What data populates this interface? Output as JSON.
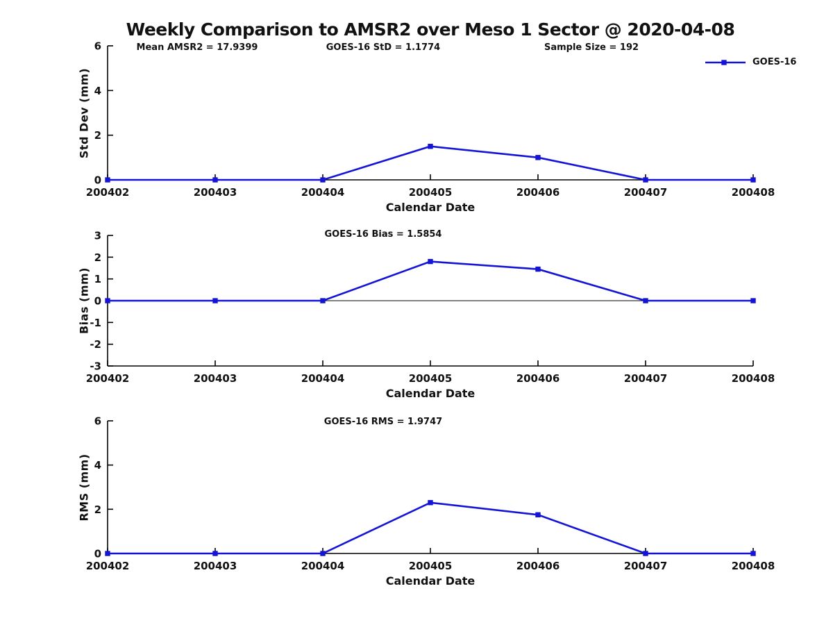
{
  "title": "Weekly Comparison to AMSR2 over Meso 1 Sector @ 2020-04-08",
  "colors": {
    "line": "#1414d6",
    "axis": "#000000",
    "text": "#111111"
  },
  "legend": {
    "label": "GOES-16"
  },
  "chart_data": [
    {
      "type": "line",
      "name": "std-dev",
      "categories": [
        "200402",
        "200403",
        "200404",
        "200405",
        "200406",
        "200407",
        "200408"
      ],
      "series": [
        {
          "name": "GOES-16",
          "values": [
            0,
            0,
            0,
            1.5,
            1.0,
            0,
            0
          ]
        }
      ],
      "ylabel": "Std Dev (mm)",
      "xlabel": "Calendar Date",
      "ylim": [
        0,
        6
      ],
      "yticks": [
        0,
        2,
        4,
        6
      ],
      "annotations": [
        "Mean AMSR2 = 17.9399",
        "GOES-16 StD = 1.1774",
        "Sample Size = 192"
      ],
      "legend": [
        "GOES-16"
      ],
      "legend_position": "top-right",
      "grid": false
    },
    {
      "type": "line",
      "name": "bias",
      "categories": [
        "200402",
        "200403",
        "200404",
        "200405",
        "200406",
        "200407",
        "200408"
      ],
      "series": [
        {
          "name": "GOES-16",
          "values": [
            0,
            0,
            0,
            1.8,
            1.45,
            0,
            0
          ]
        }
      ],
      "ylabel": "Bias (mm)",
      "xlabel": "Calendar Date",
      "ylim": [
        -3,
        3
      ],
      "yticks": [
        -3,
        -2,
        -1,
        0,
        1,
        2,
        3
      ],
      "annotations": [
        "GOES-16 Bias  = 1.5854"
      ],
      "zero_line": true,
      "grid": false
    },
    {
      "type": "line",
      "name": "rms",
      "categories": [
        "200402",
        "200403",
        "200404",
        "200405",
        "200406",
        "200407",
        "200408"
      ],
      "series": [
        {
          "name": "GOES-16",
          "values": [
            0,
            0,
            0,
            2.3,
            1.75,
            0,
            0
          ]
        }
      ],
      "ylabel": "RMS (mm)",
      "xlabel": "Calendar Date",
      "ylim": [
        0,
        6
      ],
      "yticks": [
        0,
        2,
        4,
        6
      ],
      "annotations": [
        "GOES-16 RMS = 1.9747"
      ],
      "grid": false
    }
  ]
}
